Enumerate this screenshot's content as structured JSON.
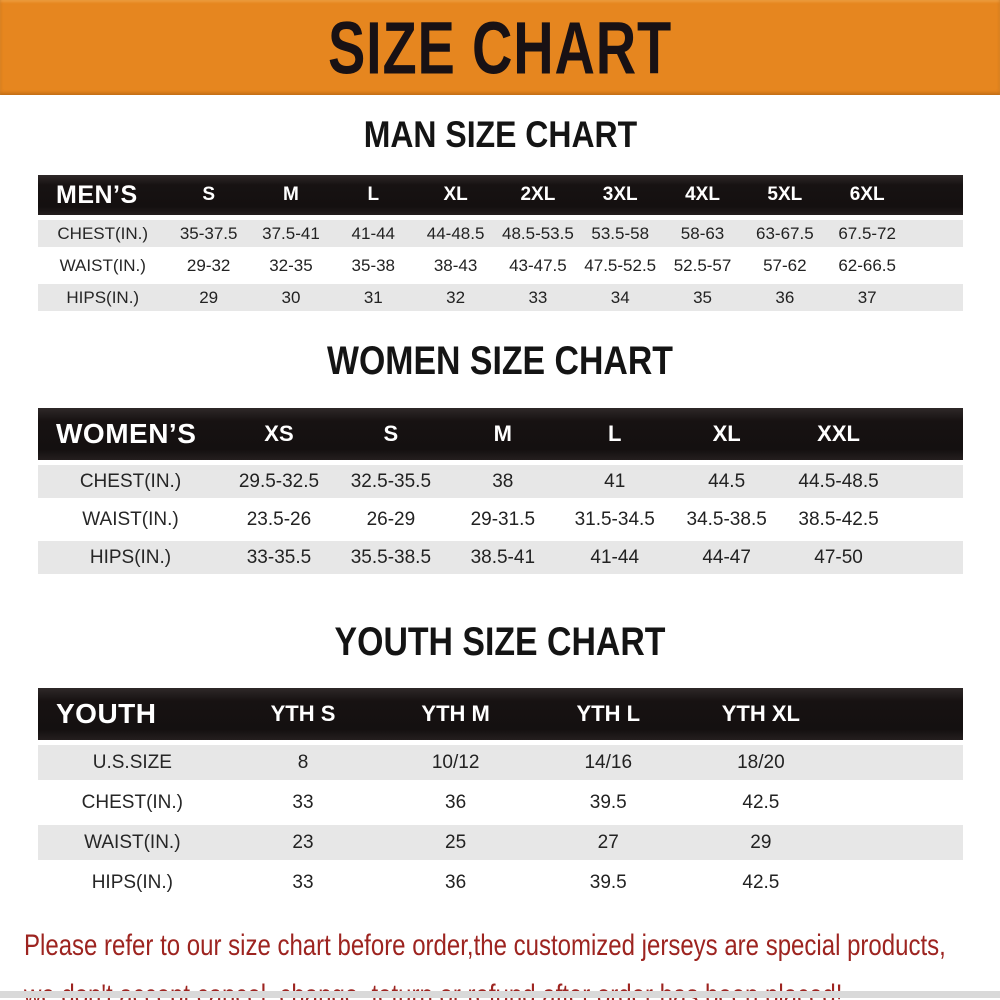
{
  "banner": {
    "title": "SIZE CHART"
  },
  "colors": {
    "banner_bg": "#e6861f",
    "header_bar": "#171212",
    "row_stripe": "#e7e7e7",
    "footer_text": "#9d2420"
  },
  "chart_data": [
    {
      "type": "table",
      "title": "MAN SIZE CHART",
      "group_label": "MEN’S",
      "columns": [
        "S",
        "M",
        "L",
        "XL",
        "2XL",
        "3XL",
        "4XL",
        "5XL",
        "6XL"
      ],
      "rows": [
        {
          "label": "CHEST(IN.)",
          "values": [
            "35-37.5",
            "37.5-41",
            "41-44",
            "44-48.5",
            "48.5-53.5",
            "53.5-58",
            "58-63",
            "63-67.5",
            "67.5-72"
          ]
        },
        {
          "label": "WAIST(IN.)",
          "values": [
            "29-32",
            "32-35",
            "35-38",
            "38-43",
            "43-47.5",
            "47.5-52.5",
            "52.5-57",
            "57-62",
            "62-66.5"
          ]
        },
        {
          "label": "HIPS(IN.)",
          "values": [
            "29",
            "30",
            "31",
            "32",
            "33",
            "34",
            "35",
            "36",
            "37"
          ]
        }
      ]
    },
    {
      "type": "table",
      "title": "WOMEN SIZE CHART",
      "group_label": "WOMEN’S",
      "columns": [
        "XS",
        "S",
        "M",
        "L",
        "XL",
        "XXL"
      ],
      "rows": [
        {
          "label": "CHEST(IN.)",
          "values": [
            "29.5-32.5",
            "32.5-35.5",
            "38",
            "41",
            "44.5",
            "44.5-48.5"
          ]
        },
        {
          "label": "WAIST(IN.)",
          "values": [
            "23.5-26",
            "26-29",
            "29-31.5",
            "31.5-34.5",
            "34.5-38.5",
            "38.5-42.5"
          ]
        },
        {
          "label": "HIPS(IN.)",
          "values": [
            "33-35.5",
            "35.5-38.5",
            "38.5-41",
            "41-44",
            "44-47",
            "47-50"
          ]
        }
      ]
    },
    {
      "type": "table",
      "title": "YOUTH SIZE CHART",
      "group_label": "YOUTH",
      "columns": [
        "YTH S",
        "YTH M",
        "YTH L",
        "YTH XL"
      ],
      "rows": [
        {
          "label": "U.S.SIZE",
          "values": [
            "8",
            "10/12",
            "14/16",
            "18/20"
          ]
        },
        {
          "label": "CHEST(IN.)",
          "values": [
            "33",
            "36",
            "39.5",
            "42.5"
          ]
        },
        {
          "label": "WAIST(IN.)",
          "values": [
            "23",
            "25",
            "27",
            "29"
          ]
        },
        {
          "label": "HIPS(IN.)",
          "values": [
            "33",
            "36",
            "39.5",
            "42.5"
          ]
        }
      ]
    }
  ],
  "footer": {
    "lines": [
      "Please refer to our size chart before order,the customized jerseys are special products,",
      "we don't accept cancel, change, teturn or refund after order has been placed!"
    ]
  }
}
